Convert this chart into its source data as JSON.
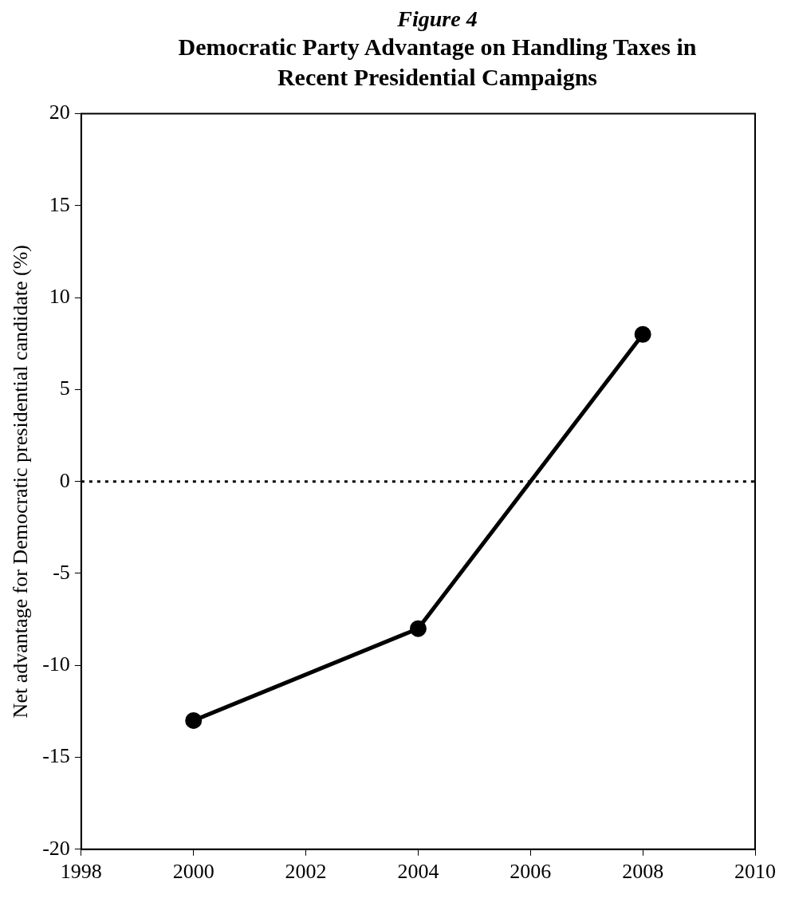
{
  "chart_data": {
    "type": "line",
    "title": "Figure 4",
    "subtitle": "Democratic Party Advantage on Handling Taxes in Recent Presidential Campaigns",
    "ylabel": "Net advantage for Democratic presidential candidate (%)",
    "x": [
      2000,
      2004,
      2008
    ],
    "series": [
      {
        "color": "#000000",
        "values": [
          -13,
          -8,
          8
        ]
      }
    ],
    "xlim": [
      1998,
      2010
    ],
    "xticks": [
      1998,
      2000,
      2002,
      2004,
      2006,
      2008,
      2010
    ],
    "ylim": [
      -20,
      20
    ],
    "yticks": [
      -20,
      -15,
      -10,
      -5,
      0,
      5,
      10,
      15,
      20
    ],
    "ref_lines": [
      {
        "axis": "y",
        "value": 0,
        "color": "#000000",
        "line_style": "dotted"
      }
    ],
    "grid": false,
    "legend": false,
    "marker": "circle",
    "line_style": "solid"
  }
}
